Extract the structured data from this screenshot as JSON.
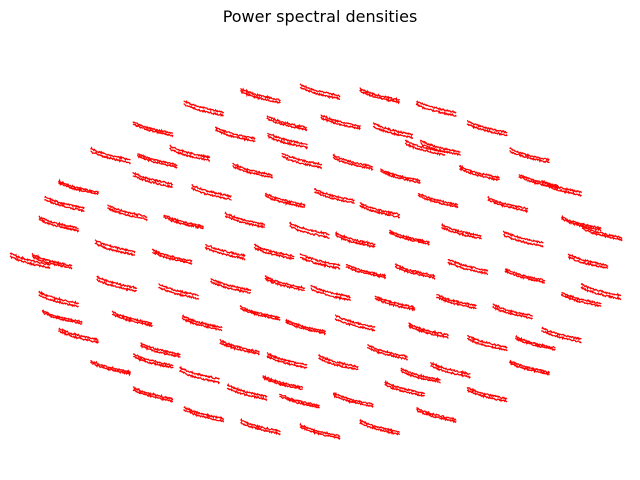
{
  "chart_data": {
    "type": "line",
    "title": "Power spectral densities",
    "xlabel": "",
    "ylabel": "",
    "axes_visible": false,
    "grid": false,
    "legend": "none",
    "series_color": "#ff0000",
    "sensor_layout": "topographic",
    "series_count": 102,
    "psd_template_db": [
      -20,
      -22,
      -23,
      -24,
      -26,
      -27,
      -28,
      -29,
      -30,
      -31,
      -32,
      -33,
      -33,
      -34,
      -35,
      -36,
      -36,
      -37,
      -38,
      -38,
      -39,
      -40,
      -40,
      -41,
      -42
    ]
  }
}
